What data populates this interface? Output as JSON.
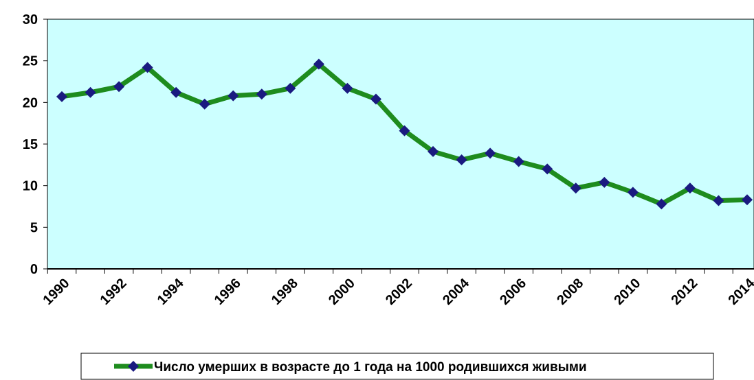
{
  "chart_data": {
    "type": "line",
    "categories": [
      "1990",
      null,
      "1992",
      null,
      "1994",
      null,
      "1996",
      null,
      "1998",
      null,
      "2000",
      null,
      "2002",
      null,
      "2004",
      null,
      "2006",
      null,
      "2008",
      null,
      "2010",
      null,
      "2012",
      null,
      "2014"
    ],
    "series": [
      {
        "name": "Число умерших в возрасте до 1 года на 1000 родившихся живыми",
        "color": "#1e8c1e",
        "marker_color": "#1a1a80",
        "values": [
          20.7,
          21.2,
          21.9,
          24.2,
          21.2,
          19.8,
          20.8,
          21.0,
          21.7,
          24.6,
          21.7,
          20.4,
          16.6,
          14.1,
          13.1,
          13.9,
          12.9,
          12.0,
          9.7,
          10.4,
          9.2,
          7.8,
          9.7,
          8.2,
          8.3
        ]
      }
    ],
    "ylim": [
      0,
      30
    ],
    "yticks": [
      0,
      5,
      10,
      15,
      20,
      25,
      30
    ],
    "plot_background": "#ccffff",
    "legend": "bottom"
  }
}
